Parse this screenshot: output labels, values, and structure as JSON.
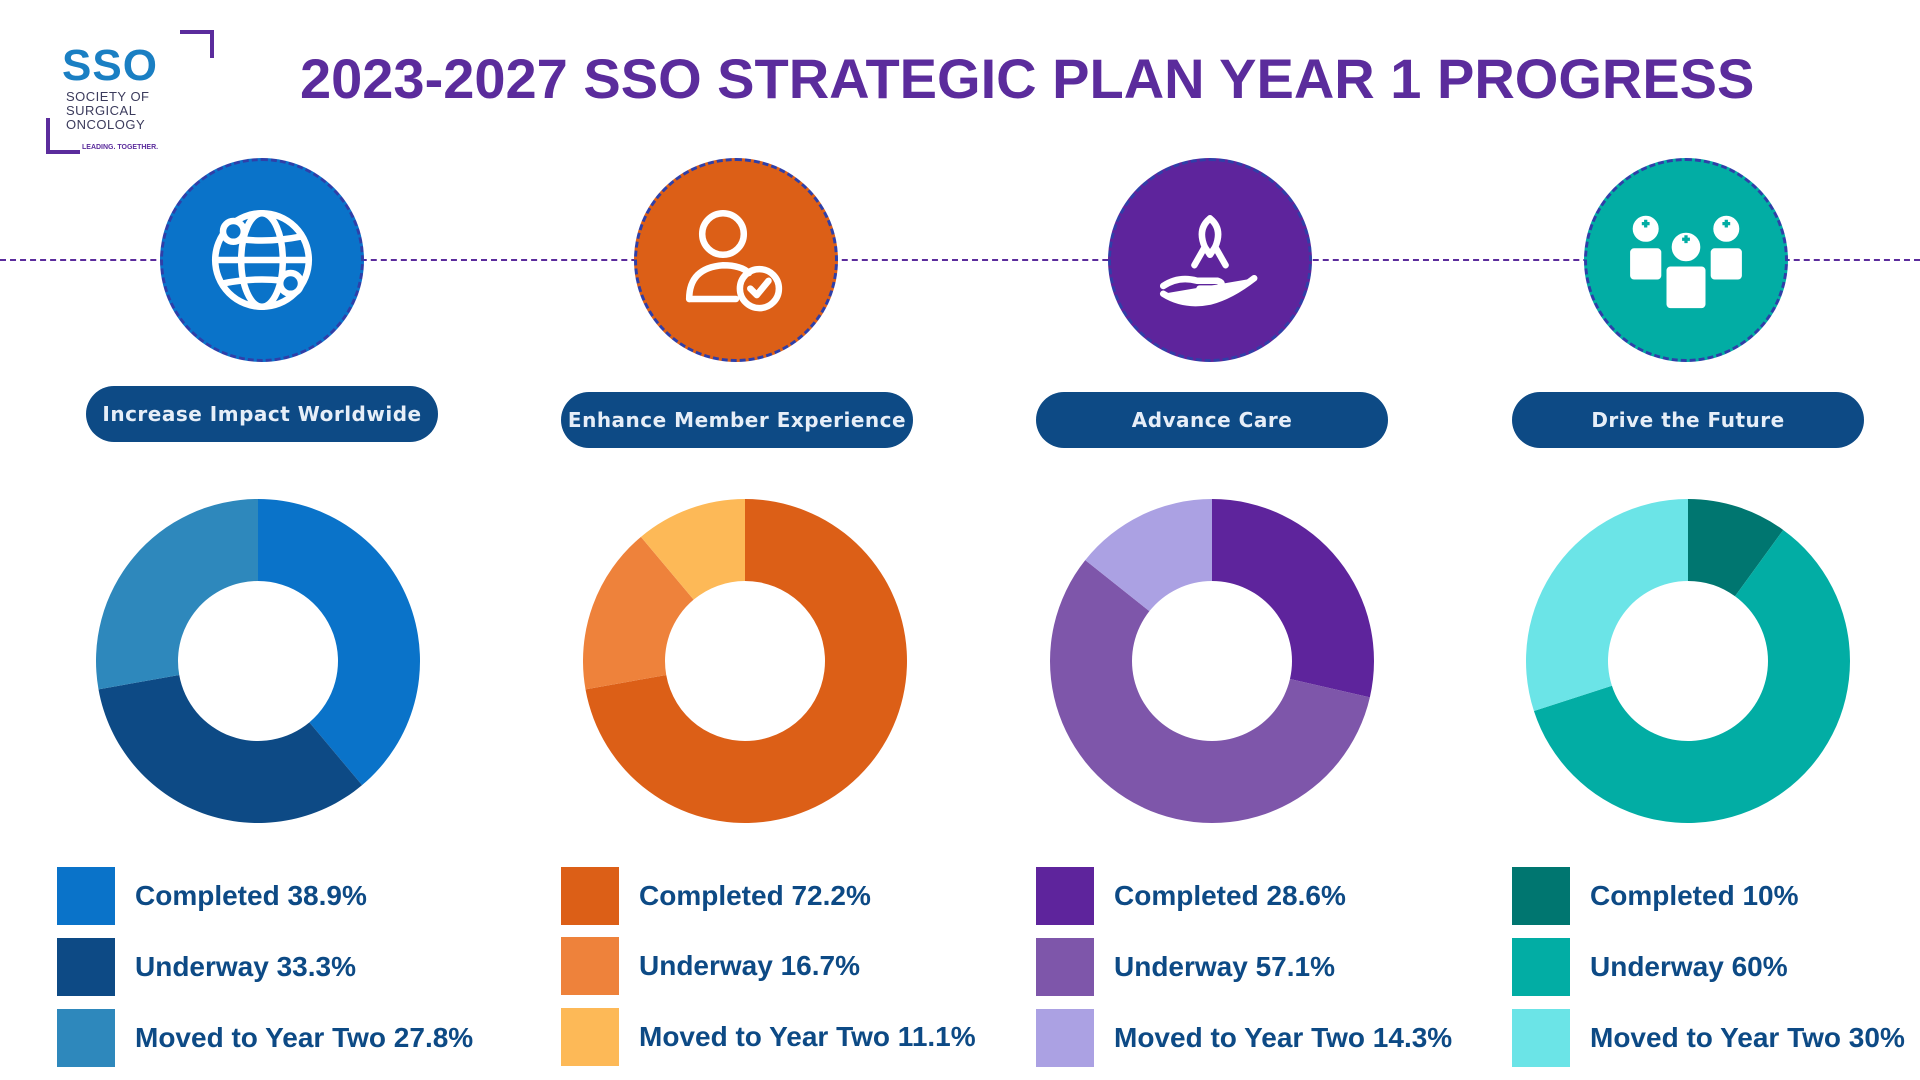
{
  "logo": {
    "abbr": "SSO",
    "line1": "SOCIETY OF",
    "line2": "SURGICAL",
    "line3": "ONCOLOGY",
    "tagline": "LEADING. TOGETHER."
  },
  "title": "2023-2027 SSO STRATEGIC PLAN YEAR 1 PROGRESS",
  "pillars": [
    {
      "label": "Increase Impact Worldwide",
      "icon": "globe-network-icon",
      "icon_color": "#0a73c9"
    },
    {
      "label": "Enhance Member Experience",
      "icon": "user-check-icon",
      "icon_color": "#dc5f17"
    },
    {
      "label": "Advance Care",
      "icon": "ribbon-hand-icon",
      "icon_color": "#5e249c"
    },
    {
      "label": "Drive the Future",
      "icon": "doctors-team-icon",
      "icon_color": "#02ada4"
    }
  ],
  "legends": [
    [
      {
        "text": "Completed 38.9%"
      },
      {
        "text": "Underway 33.3%"
      },
      {
        "text": "Moved to Year Two 27.8%"
      }
    ],
    [
      {
        "text": "Completed 72.2%"
      },
      {
        "text": "Underway 16.7%"
      },
      {
        "text": "Moved to Year Two 11.1%"
      }
    ],
    [
      {
        "text": "Completed 28.6%"
      },
      {
        "text": "Underway 57.1%"
      },
      {
        "text": "Moved to Year Two 14.3%"
      }
    ],
    [
      {
        "text": "Completed 10%"
      },
      {
        "text": "Underway 60%"
      },
      {
        "text": "Moved to Year Two 30%"
      }
    ]
  ],
  "chart_data": [
    {
      "type": "pie",
      "style": "donut",
      "title": "Increase Impact Worldwide",
      "categories": [
        "Completed",
        "Underway",
        "Moved to Year Two"
      ],
      "values": [
        38.9,
        33.3,
        27.8
      ],
      "colors": [
        "#0a73c9",
        "#0d4a85",
        "#2e88bc"
      ]
    },
    {
      "type": "pie",
      "style": "donut",
      "title": "Enhance Member Experience",
      "categories": [
        "Completed",
        "Underway",
        "Moved to Year Two"
      ],
      "values": [
        72.2,
        16.7,
        11.1
      ],
      "colors": [
        "#dc5f17",
        "#ee823b",
        "#fdb957"
      ]
    },
    {
      "type": "pie",
      "style": "donut",
      "title": "Advance Care",
      "categories": [
        "Completed",
        "Underway",
        "Moved to Year Two"
      ],
      "values": [
        28.6,
        57.1,
        14.3
      ],
      "colors": [
        "#5e249c",
        "#7e56aa",
        "#aba1e3"
      ]
    },
    {
      "type": "pie",
      "style": "donut",
      "title": "Drive the Future",
      "categories": [
        "Completed",
        "Underway",
        "Moved to Year Two"
      ],
      "values": [
        10,
        60,
        30
      ],
      "colors": [
        "#007670",
        "#02ada4",
        "#6be4e7"
      ]
    }
  ]
}
